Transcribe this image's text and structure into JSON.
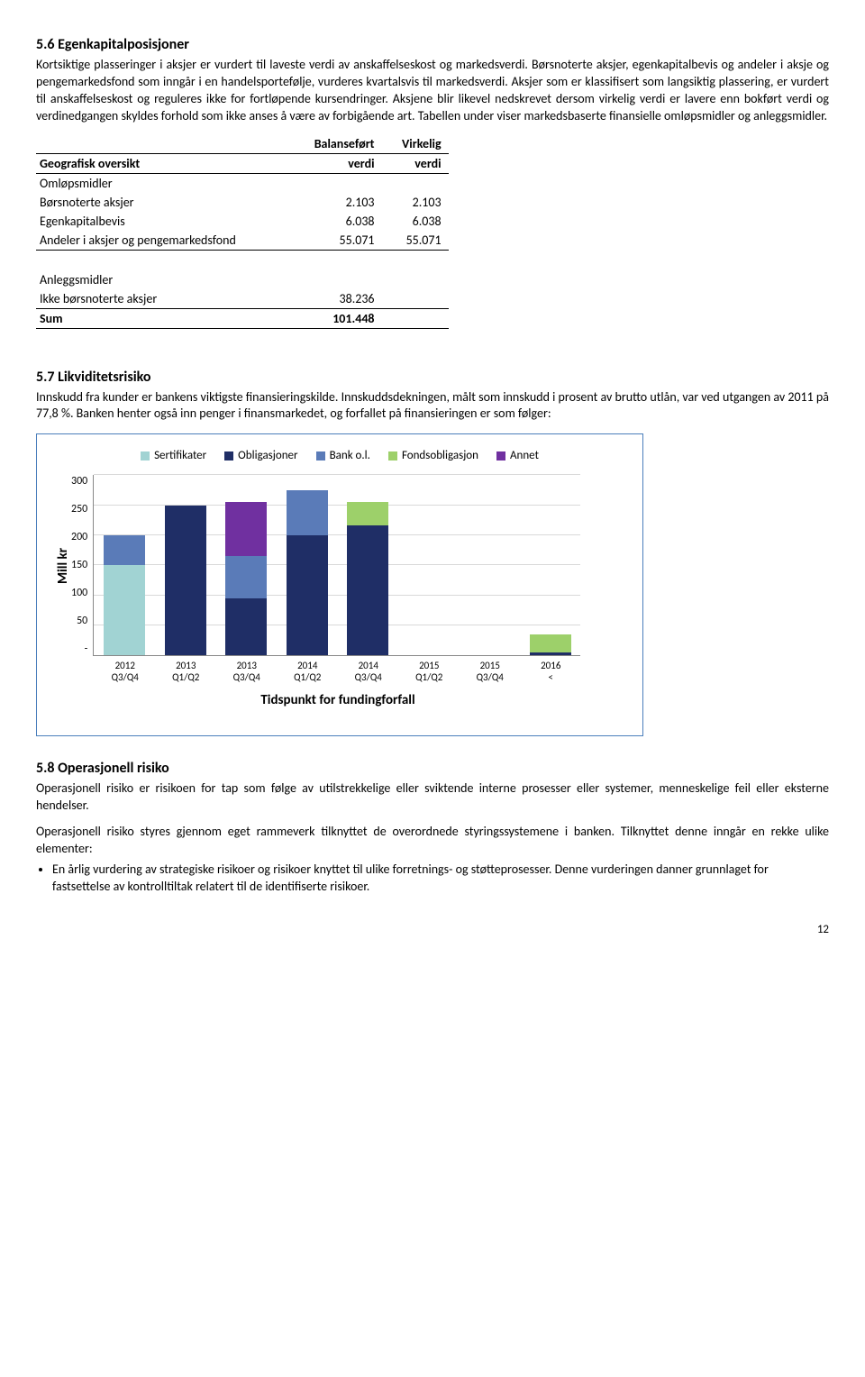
{
  "section56": {
    "heading": "5.6    Egenkapitalposisjoner",
    "para": "Kortsiktige plasseringer i aksjer er vurdert til laveste verdi av anskaffelseskost og markedsverdi. Børsnoterte aksjer, egenkapitalbevis og andeler i aksje og pengemarkedsfond som inngår i en handelsportefølje, vurderes kvartalsvis til markedsverdi. Aksjer som er klassifisert som langsiktig plassering, er vurdert til anskaffelseskost og reguleres ikke for fortløpende kursendringer. Aksjene blir likevel nedskrevet dersom virkelig verdi er lavere enn bokført verdi og verdinedgangen skyldes forhold som ikke anses å være av forbigående art. Tabellen under viser markedsbaserte finansielle omløpsmidler og anleggsmidler.",
    "table": {
      "head_col1": "Geografisk oversikt",
      "head_col2_top": "Balanseført",
      "head_col2_bot": "verdi",
      "head_col3_top": "Virkelig",
      "head_col3_bot": "verdi",
      "group1": "Omløpsmidler",
      "rows1": [
        {
          "label": "Børsnoterte aksjer",
          "v1": "2.103",
          "v2": "2.103"
        },
        {
          "label": "Egenkapitalbevis",
          "v1": "6.038",
          "v2": "6.038"
        },
        {
          "label": "Andeler i aksjer og pengemarkedsfond",
          "v1": "55.071",
          "v2": "55.071"
        }
      ],
      "group2": "Anleggsmidler",
      "rows2": [
        {
          "label": "Ikke børsnoterte aksjer",
          "v1": "38.236",
          "v2": ""
        }
      ],
      "sum_label": "Sum",
      "sum_v1": "101.448"
    }
  },
  "section57": {
    "heading": "5.7    Likviditetsrisiko",
    "para": "Innskudd fra kunder er bankens viktigste finansieringskilde. Innskuddsdekningen, målt som innskudd i prosent av brutto utlån, var ved utgangen av 2011 på 77,8 %. Banken henter også inn penger i finansmarkedet, og forfallet på finansieringen er som følger:"
  },
  "chart": {
    "type": "stacked-bar",
    "y_label": "Mill kr",
    "x_axis_title": "Tidspunkt for fundingforfall",
    "legend": [
      {
        "label": "Sertifikater",
        "color": "#a1d3d3"
      },
      {
        "label": "Obligasjoner",
        "color": "#1f2e66"
      },
      {
        "label": "Bank o.l.",
        "color": "#5a7bb8"
      },
      {
        "label": "Fondsobligasjon",
        "color": "#9dd06a"
      },
      {
        "label": "Annet",
        "color": "#7030a0"
      }
    ],
    "y_max": 300,
    "y_ticks": [
      "300",
      "250",
      "200",
      "150",
      "100",
      "50",
      "-"
    ],
    "categories": [
      "2012 Q3/Q4",
      "2013 Q1/Q2",
      "2013 Q3/Q4",
      "2014 Q1/Q2",
      "2014 Q3/Q4",
      "2015 Q1/Q2",
      "2015 Q3/Q4",
      "2016 <"
    ],
    "stacks": [
      [
        {
          "color": "#a1d3d3",
          "value": 150
        },
        {
          "color": "#5a7bb8",
          "value": 50
        }
      ],
      [
        {
          "color": "#1f2e66",
          "value": 250
        }
      ],
      [
        {
          "color": "#1f2e66",
          "value": 95
        },
        {
          "color": "#5a7bb8",
          "value": 70
        },
        {
          "color": "#7030a0",
          "value": 90
        }
      ],
      [
        {
          "color": "#1f2e66",
          "value": 200
        },
        {
          "color": "#5a7bb8",
          "value": 75
        }
      ],
      [
        {
          "color": "#1f2e66",
          "value": 216
        },
        {
          "color": "#9dd06a",
          "value": 40
        }
      ],
      [],
      [],
      [
        {
          "color": "#1f2e66",
          "value": 5
        },
        {
          "color": "#9dd06a",
          "value": 30
        }
      ]
    ],
    "grid_color": "#d9d9d9",
    "border_color": "#4a7ebb"
  },
  "section58": {
    "heading": "5.8    Operasjonell risiko",
    "para1": "Operasjonell risiko er risikoen for tap som følge av utilstrekkelige eller sviktende interne prosesser eller systemer, menneskelige feil eller eksterne hendelser.",
    "para2": "Operasjonell risiko styres gjennom eget rammeverk tilknyttet de overordnede styringssystemene i banken. Tilknyttet denne inngår en rekke ulike elementer:",
    "bullet": "En årlig vurdering av strategiske risikoer og risikoer knyttet til ulike forretnings- og støtteprosesser. Denne vurderingen danner grunnlaget for fastsettelse av kontrolltiltak relatert til de identifiserte risikoer."
  },
  "page_num": "12"
}
